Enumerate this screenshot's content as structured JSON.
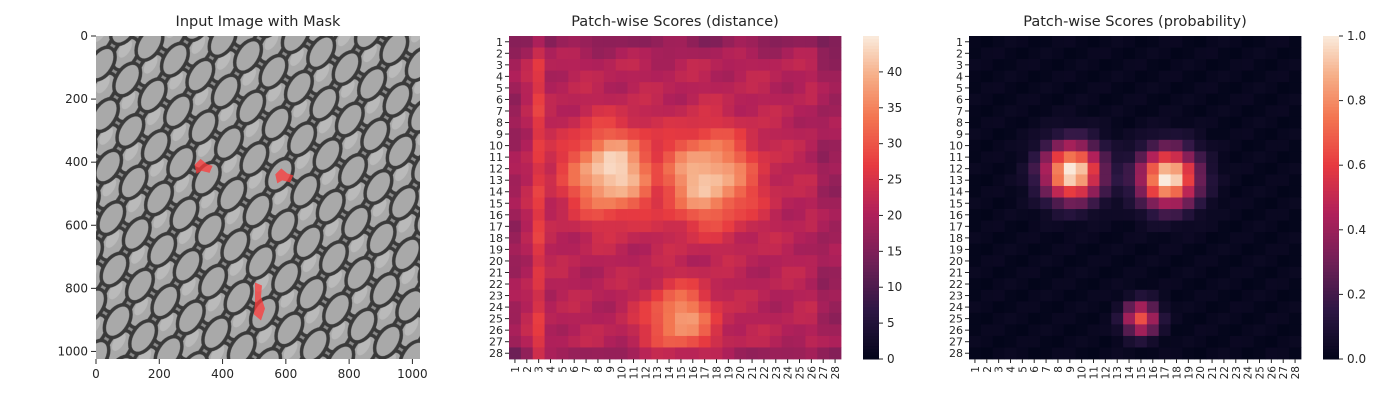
{
  "chart_data": [
    {
      "type": "image",
      "title": "Input Image with Mask",
      "xlim": [
        0,
        1024
      ],
      "ylim": [
        1024,
        0
      ],
      "xticks": [
        0,
        200,
        400,
        600,
        800,
        1000
      ],
      "yticks": [
        0,
        200,
        400,
        600,
        800,
        1000
      ],
      "mask_color": "#ff3b3b",
      "mask_regions": [
        {
          "x": 340,
          "y": 418
        },
        {
          "x": 595,
          "y": 448
        },
        {
          "x": 512,
          "y": 845
        }
      ]
    },
    {
      "type": "heatmap",
      "title": "Patch-wise Scores (distance)",
      "rows": [
        "1",
        "2",
        "3",
        "4",
        "5",
        "6",
        "7",
        "8",
        "9",
        "10",
        "11",
        "12",
        "13",
        "14",
        "15",
        "16",
        "17",
        "18",
        "19",
        "20",
        "21",
        "22",
        "23",
        "24",
        "25",
        "26",
        "27",
        "28"
      ],
      "cols": [
        "1",
        "2",
        "3",
        "4",
        "5",
        "6",
        "7",
        "8",
        "9",
        "10",
        "11",
        "12",
        "13",
        "14",
        "15",
        "16",
        "17",
        "18",
        "19",
        "20",
        "21",
        "22",
        "23",
        "24",
        "25",
        "26",
        "27",
        "28"
      ],
      "vmin": 0,
      "vmax": 45,
      "colorbar_ticks": [
        0,
        5,
        10,
        15,
        20,
        25,
        30,
        35,
        40
      ],
      "background_level": 21,
      "hotspots": [
        {
          "row": 12.3,
          "col": 9.2,
          "peak": 44,
          "radius": 2.6
        },
        {
          "row": 12.8,
          "col": 17.2,
          "peak": 42,
          "radius": 2.8
        },
        {
          "row": 25.0,
          "col": 15.0,
          "peak": 38,
          "radius": 2.0
        }
      ],
      "cool_edge_cols": [
        1,
        27,
        28
      ],
      "warm_stripe_col": 3
    },
    {
      "type": "heatmap",
      "title": "Patch-wise Scores (probability)",
      "rows": [
        "1",
        "2",
        "3",
        "4",
        "5",
        "6",
        "7",
        "8",
        "9",
        "10",
        "11",
        "12",
        "13",
        "14",
        "15",
        "16",
        "17",
        "18",
        "19",
        "20",
        "21",
        "22",
        "23",
        "24",
        "25",
        "26",
        "27",
        "28"
      ],
      "cols": [
        "1",
        "2",
        "3",
        "4",
        "5",
        "6",
        "7",
        "8",
        "9",
        "10",
        "11",
        "12",
        "13",
        "14",
        "15",
        "16",
        "17",
        "18",
        "19",
        "20",
        "21",
        "22",
        "23",
        "24",
        "25",
        "26",
        "27",
        "28"
      ],
      "vmin": 0.0,
      "vmax": 1.0,
      "colorbar_ticks": [
        "0.0",
        "0.2",
        "0.4",
        "0.6",
        "0.8",
        "1.0"
      ],
      "background_level": 0.0,
      "hotspots": [
        {
          "row": 12.3,
          "col": 9.2,
          "peak": 1.0,
          "radius": 1.7
        },
        {
          "row": 12.8,
          "col": 17.3,
          "peak": 1.0,
          "radius": 1.7
        },
        {
          "row": 25.0,
          "col": 15.0,
          "peak": 0.65,
          "radius": 1.0
        }
      ]
    }
  ]
}
